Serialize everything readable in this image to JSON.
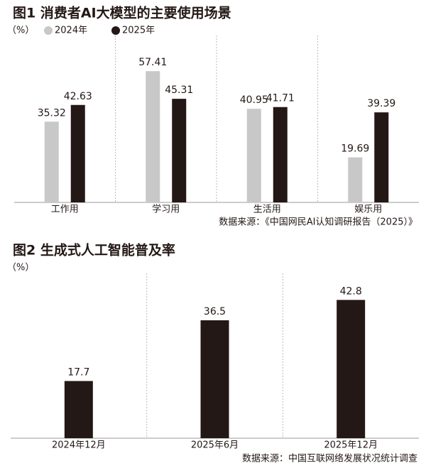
{
  "chart_data": [
    {
      "type": "bar",
      "title": "图1 消费者AI大模型的主要使用场景",
      "unit": "（%）",
      "categories": [
        "工作用",
        "学习用",
        "生活用",
        "娱乐用"
      ],
      "series": [
        {
          "name": "2024年",
          "color": "#c8c8c8",
          "values": [
            35.32,
            57.41,
            40.95,
            19.69
          ]
        },
        {
          "name": "2025年",
          "color": "#231815",
          "values": [
            42.63,
            45.31,
            41.71,
            39.39
          ]
        }
      ],
      "ylim": [
        0,
        73
      ],
      "source": "数据来源：《中国网民AI认知调研报告（2025）》"
    },
    {
      "type": "bar",
      "title": "图2 生成式人工智能普及率",
      "unit": "（%）",
      "categories": [
        "2024年12月",
        "2025年6月",
        "2025年12月"
      ],
      "values": [
        17.7,
        36.5,
        42.8
      ],
      "color": "#231815",
      "ylim": [
        0,
        51
      ],
      "source": "数据来源：中国互联网络发展状况统计调查"
    }
  ]
}
